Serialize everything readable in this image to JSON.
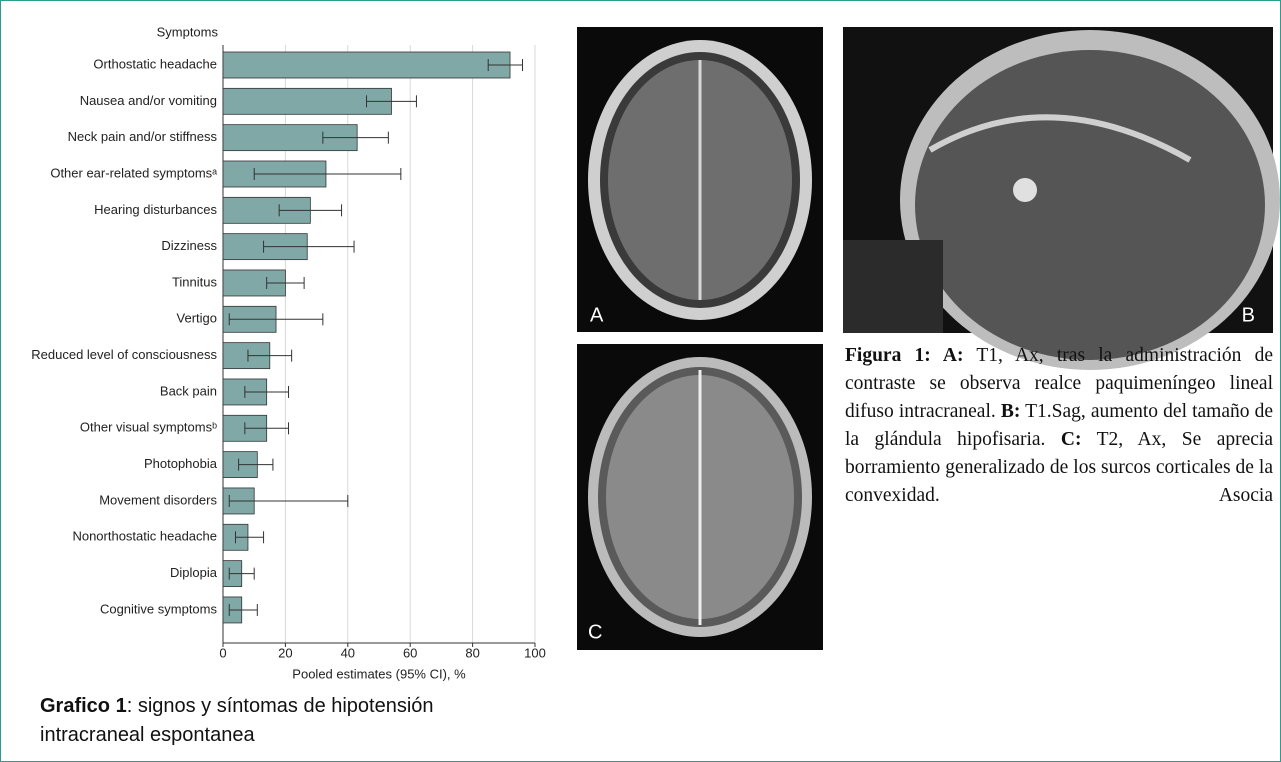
{
  "chart_data": {
    "type": "bar",
    "orientation": "horizontal",
    "category_label": "Symptoms",
    "x_label": "Pooled estimates (95% CI), %",
    "categories": [
      "Orthostatic headache",
      "Nausea and/or vomiting",
      "Neck pain and/or stiffness",
      "Other ear-related symptomsᵃ",
      "Hearing disturbances",
      "Dizziness",
      "Tinnitus",
      "Vertigo",
      "Reduced level of consciousness",
      "Back pain",
      "Other visual symptomsᵇ",
      "Photophobia",
      "Movement disorders",
      "Nonorthostatic headache",
      "Diplopia",
      "Cognitive symptoms"
    ],
    "series": [
      {
        "color": "#7fa8a6",
        "values": [
          92,
          54,
          43,
          33,
          28,
          27,
          20,
          17,
          15,
          14,
          14,
          11,
          10,
          8,
          6,
          6
        ],
        "ci_low": [
          85,
          46,
          32,
          10,
          18,
          13,
          14,
          2,
          8,
          7,
          7,
          5,
          2,
          4,
          2,
          2
        ],
        "ci_high": [
          96,
          62,
          53,
          57,
          38,
          42,
          26,
          32,
          22,
          21,
          21,
          16,
          40,
          13,
          10,
          11
        ]
      }
    ],
    "xlim": [
      0,
      100
    ],
    "xticks": [
      0,
      20,
      40,
      60,
      80,
      100
    ],
    "grid": true
  },
  "chart_caption": {
    "bold": "Grafico 1",
    "text": ": signos y síntomas de hipotensión intracraneal espontanea"
  },
  "images": [
    {
      "label": "A"
    },
    {
      "label": "B"
    },
    {
      "label": "C"
    }
  ],
  "figure_caption": [
    {
      "text": "Figura 1: A:",
      "bold": true
    },
    {
      "text": " T1, Ax, tras la administración de contraste se observa realce paquimeníngeo lineal difuso intracraneal. ",
      "bold": false
    },
    {
      "text": "B:",
      "bold": true
    },
    {
      "text": " T1.Sag, aumento del tamaño de la glándula hipofisaria. ",
      "bold": false
    },
    {
      "text": "C:",
      "bold": true
    },
    {
      "text": " T2, Ax, Se aprecia borramiento generalizado de los surcos corticales de la convexidad. Asocia",
      "bold": false
    }
  ]
}
